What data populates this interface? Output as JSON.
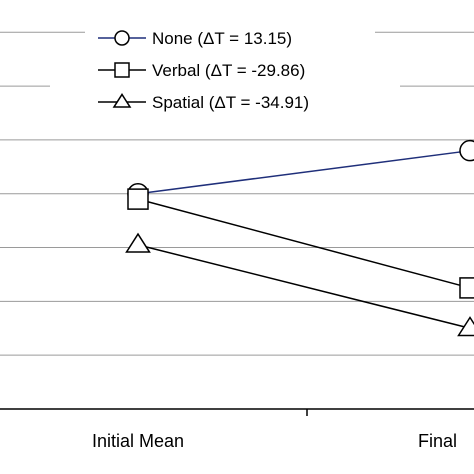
{
  "chart_data": {
    "type": "line",
    "x": [
      "Initial Mean",
      "Final"
    ],
    "series": [
      {
        "name": "None (ΔT = 13.15)",
        "marker": "circle",
        "color": "#1f2f7a",
        "values": [
          4.0,
          5.6
        ]
      },
      {
        "name": "Verbal (ΔT = -29.86)",
        "marker": "square",
        "color": "#000000",
        "values": [
          3.8,
          0.5
        ]
      },
      {
        "name": "Spatial (ΔT = -34.91)",
        "marker": "triangle",
        "color": "#000000",
        "values": [
          2.1,
          -1.0
        ]
      }
    ],
    "ylim": [
      -4,
      11.2
    ],
    "grid": true,
    "legend_position": "top"
  }
}
